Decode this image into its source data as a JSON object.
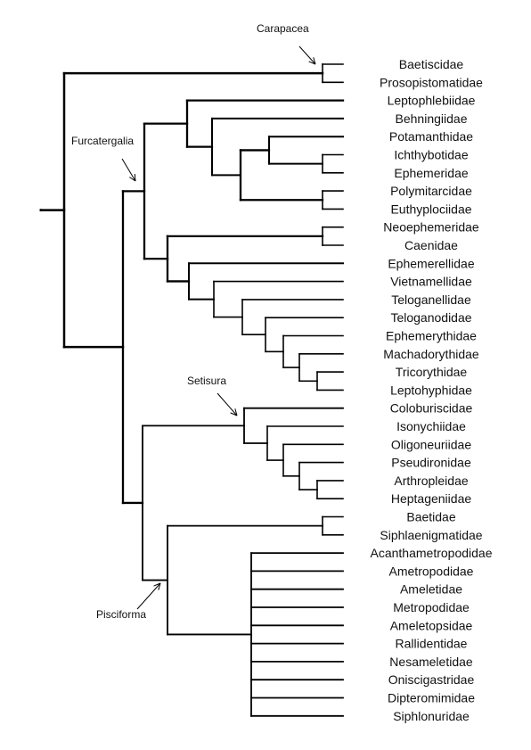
{
  "colors": {
    "lines": "#000000",
    "text": "#111111",
    "background": "#ffffff"
  },
  "taxa": [
    "Baetiscidae",
    "Prosopistomatidae",
    "Leptophlebiidae",
    "Behningiidae",
    "Potamanthidae",
    "Ichthybotidae",
    "Ephemeridae",
    "Polymitarcidae",
    "Euthyplociidae",
    "Neoephemeridae",
    "Caenidae",
    "Ephemerellidae",
    "Vietnamellidae",
    "Teloganellidae",
    "Teloganodidae",
    "Ephemerythidae",
    "Machadorythidae",
    "Tricorythidae",
    "Leptohyphidae",
    "Coloburiscidae",
    "Isonychiidae",
    "Oligoneuriidae",
    "Pseudironidae",
    "Arthropleidae",
    "Heptageniidae",
    "Baetidae",
    "Siphlaenigmatidae",
    "Acanthametropodidae",
    "Ametropodidae",
    "Ameletidae",
    "Metropodidae",
    "Ameletopsidae",
    "Rallidentidae",
    "Nesameletidae",
    "Oniscigastridae",
    "Dipteromimidae",
    "Siphlonuridae"
  ],
  "clade_labels": {
    "carapacea": "Carapacea",
    "furcatergalia": "Furcatergalia",
    "setisura": "Setisura",
    "pisciforma": "Pisciforma"
  }
}
